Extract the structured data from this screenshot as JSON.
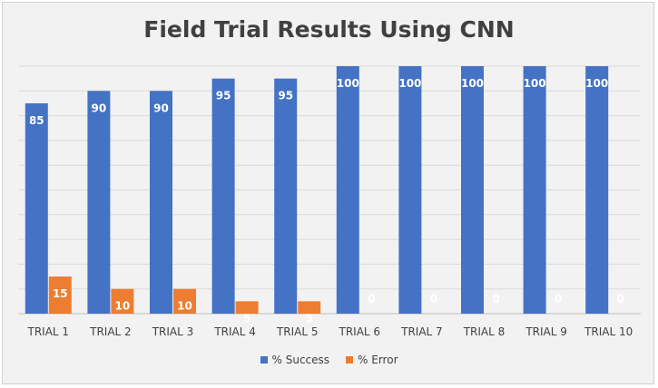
{
  "chart_data": {
    "type": "bar",
    "title": "Field Trial Results Using CNN",
    "categories": [
      "TRIAL 1",
      "TRIAL 2",
      "TRIAL 3",
      "TRIAL 4",
      "TRIAL 5",
      "TRIAL 6",
      "TRIAL 7",
      "TRIAL 8",
      "TRIAL 9",
      "TRIAL 10"
    ],
    "series": [
      {
        "name": "% Success",
        "color": "#4472c4",
        "values": [
          85,
          90,
          90,
          95,
          95,
          100,
          100,
          100,
          100,
          100
        ]
      },
      {
        "name": "% Error",
        "color": "#ed7d31",
        "values": [
          15,
          10,
          10,
          5,
          5,
          0,
          0,
          0,
          0,
          0
        ]
      }
    ],
    "ylim": [
      0,
      100
    ],
    "grid": true,
    "legend_position": "bottom"
  }
}
